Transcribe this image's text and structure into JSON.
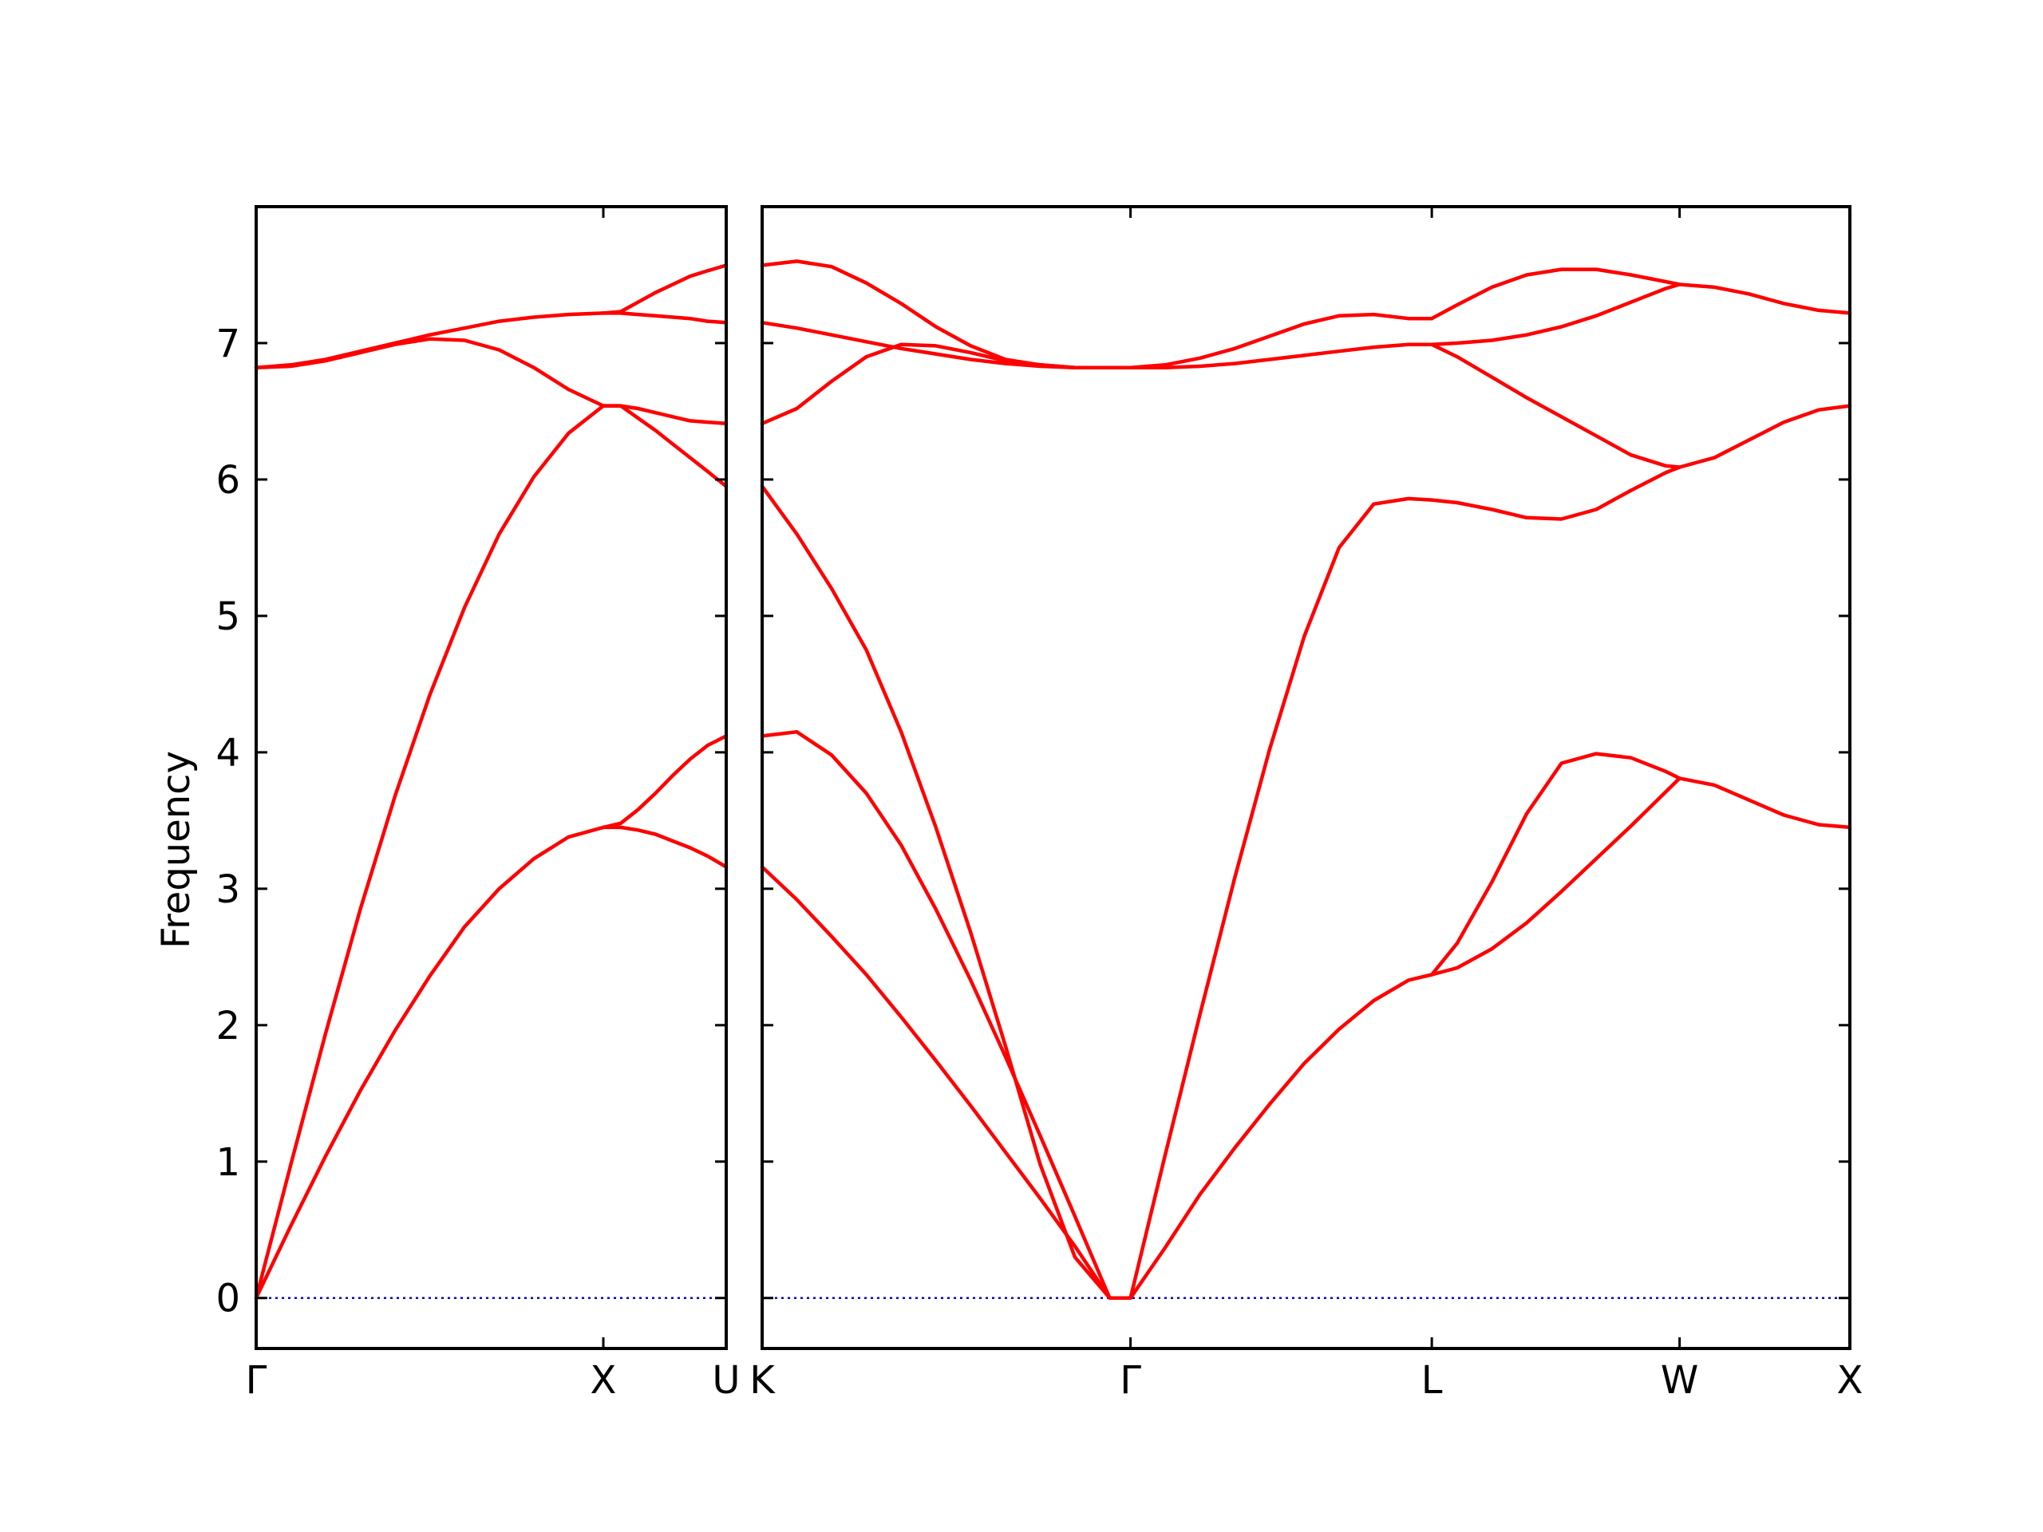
{
  "chart_data": {
    "type": "line",
    "ylabel": "Frequency",
    "ylim": [
      -0.37,
      8.0
    ],
    "yticks": [
      0,
      1,
      2,
      3,
      4,
      5,
      6,
      7
    ],
    "grid": false,
    "legend": "none",
    "band_color": "#ff0000",
    "zero_line_color": "#0000cc",
    "zero_line_y": 0,
    "panels": [
      {
        "xlim": [
          0,
          1.354
        ],
        "ticks": [
          {
            "x": 0,
            "label": "Γ"
          },
          {
            "x": 1.0,
            "label": "X"
          },
          {
            "x": 1.354,
            "label": "U"
          }
        ],
        "series": [
          {
            "x": [
              0,
              0.1,
              0.2,
              0.3,
              0.4,
              0.5,
              0.6,
              0.7,
              0.8,
              0.9,
              1.0,
              1.05,
              1.1,
              1.15,
              1.2,
              1.25,
              1.3,
              1.354
            ],
            "y": [
              0,
              0.53,
              1.04,
              1.52,
              1.96,
              2.36,
              2.72,
              3.0,
              3.22,
              3.38,
              3.45,
              3.45,
              3.43,
              3.4,
              3.35,
              3.3,
              3.24,
              3.16
            ]
          },
          {
            "x": [
              0,
              0.1,
              0.2,
              0.3,
              0.4,
              0.5,
              0.6,
              0.7,
              0.8,
              0.9,
              1.0,
              1.05,
              1.1,
              1.15,
              1.2,
              1.25,
              1.3,
              1.354
            ],
            "y": [
              0,
              0.98,
              1.94,
              2.85,
              3.68,
              4.42,
              5.06,
              5.6,
              6.02,
              6.34,
              6.54,
              6.54,
              6.45,
              6.36,
              6.26,
              6.16,
              6.06,
              5.95
            ]
          },
          {
            "x": [
              0,
              0.1,
              0.2,
              0.3,
              0.4,
              0.5,
              0.6,
              0.7,
              0.8,
              0.9,
              1.0,
              1.05,
              1.1,
              1.15,
              1.2,
              1.25,
              1.3,
              1.354
            ],
            "y": [
              6.82,
              6.83,
              6.87,
              6.93,
              6.99,
              7.03,
              7.02,
              6.95,
              6.82,
              6.66,
              6.54,
              6.54,
              6.52,
              6.49,
              6.46,
              6.43,
              6.42,
              6.41
            ]
          },
          {
            "x": [
              0,
              0.1,
              0.2,
              0.3,
              0.4,
              0.5,
              0.6,
              0.7,
              0.8,
              0.9,
              1.0,
              1.05,
              1.1,
              1.15,
              1.2,
              1.25,
              1.3,
              1.354
            ],
            "y": [
              6.82,
              6.84,
              6.88,
              6.94,
              7.0,
              7.06,
              7.11,
              7.16,
              7.19,
              7.21,
              7.22,
              7.22,
              7.21,
              7.2,
              7.19,
              7.18,
              7.16,
              7.15
            ]
          },
          {
            "x": [
              1.0,
              1.05,
              1.1,
              1.15,
              1.2,
              1.25,
              1.3,
              1.354
            ],
            "y": [
              3.45,
              3.48,
              3.58,
              3.7,
              3.83,
              3.95,
              4.05,
              4.12
            ]
          },
          {
            "x": [
              1.0,
              1.05,
              1.1,
              1.15,
              1.2,
              1.25,
              1.3,
              1.354
            ],
            "y": [
              7.22,
              7.23,
              7.3,
              7.37,
              7.43,
              7.49,
              7.53,
              7.57
            ]
          }
        ]
      },
      {
        "xlim": [
          0,
          3.13
        ],
        "ticks": [
          {
            "x": 0,
            "label": "K"
          },
          {
            "x": 1.06,
            "label": "Γ"
          },
          {
            "x": 1.927,
            "label": "L"
          },
          {
            "x": 2.64,
            "label": "W"
          },
          {
            "x": 3.13,
            "label": "X"
          }
        ],
        "series": [
          {
            "x": [
              0,
              0.1,
              0.2,
              0.3,
              0.4,
              0.5,
              0.6,
              0.7,
              0.8,
              0.9,
              1.0,
              1.06
            ],
            "y": [
              3.16,
              2.92,
              2.65,
              2.37,
              2.06,
              1.74,
              1.41,
              1.07,
              0.73,
              0.38,
              0.0,
              0.0
            ]
          },
          {
            "x": [
              0,
              0.1,
              0.2,
              0.3,
              0.4,
              0.5,
              0.6,
              0.7,
              0.8,
              0.9,
              1.0,
              1.06
            ],
            "y": [
              4.12,
              4.15,
              3.98,
              3.7,
              3.32,
              2.85,
              2.33,
              1.77,
              1.19,
              0.6,
              0.0,
              0.0
            ]
          },
          {
            "x": [
              0,
              0.1,
              0.2,
              0.3,
              0.4,
              0.5,
              0.6,
              0.7,
              0.8,
              0.9,
              1.0,
              1.06
            ],
            "y": [
              5.95,
              5.6,
              5.2,
              4.75,
              4.15,
              3.45,
              2.68,
              1.85,
              0.98,
              0.3,
              0.0,
              0.0
            ]
          },
          {
            "x": [
              0,
              0.1,
              0.2,
              0.3,
              0.4,
              0.5,
              0.6,
              0.7,
              0.8,
              0.9,
              1.0,
              1.06
            ],
            "y": [
              6.41,
              6.52,
              6.72,
              6.9,
              6.99,
              6.98,
              6.93,
              6.87,
              6.84,
              6.82,
              6.82,
              6.82
            ]
          },
          {
            "x": [
              0,
              0.1,
              0.2,
              0.3,
              0.4,
              0.5,
              0.6,
              0.7,
              0.8,
              0.9,
              1.0,
              1.06
            ],
            "y": [
              7.15,
              7.11,
              7.06,
              7.01,
              6.96,
              6.92,
              6.88,
              6.85,
              6.83,
              6.82,
              6.82,
              6.82
            ]
          },
          {
            "x": [
              0,
              0.1,
              0.2,
              0.3,
              0.4,
              0.5,
              0.6,
              0.7,
              0.8,
              0.9,
              1.0,
              1.06
            ],
            "y": [
              7.57,
              7.6,
              7.56,
              7.44,
              7.29,
              7.12,
              6.98,
              6.88,
              6.84,
              6.82,
              6.82,
              6.82
            ]
          },
          {
            "x": [
              1.06,
              1.16,
              1.26,
              1.36,
              1.46,
              1.56,
              1.66,
              1.76,
              1.86,
              1.927
            ],
            "y": [
              0.0,
              0.37,
              0.76,
              1.1,
              1.42,
              1.72,
              1.97,
              2.18,
              2.33,
              2.37
            ]
          },
          {
            "x": [
              1.06,
              1.16,
              1.26,
              1.36,
              1.46,
              1.56,
              1.66,
              1.76,
              1.86,
              1.927
            ],
            "y": [
              0.0,
              1.05,
              2.08,
              3.08,
              4.02,
              4.85,
              5.5,
              5.82,
              5.86,
              5.85
            ]
          },
          {
            "x": [
              1.06,
              1.16,
              1.26,
              1.36,
              1.46,
              1.56,
              1.66,
              1.76,
              1.86,
              1.927
            ],
            "y": [
              6.82,
              6.82,
              6.83,
              6.85,
              6.88,
              6.91,
              6.94,
              6.97,
              6.99,
              6.99
            ]
          },
          {
            "x": [
              1.06,
              1.16,
              1.26,
              1.36,
              1.46,
              1.56,
              1.66,
              1.76,
              1.86,
              1.927
            ],
            "y": [
              6.82,
              6.84,
              6.89,
              6.96,
              7.05,
              7.14,
              7.2,
              7.21,
              7.18,
              7.18
            ]
          },
          {
            "x": [
              1.927,
              2.0,
              2.1,
              2.2,
              2.3,
              2.4,
              2.5,
              2.6,
              2.64
            ],
            "y": [
              2.37,
              2.42,
              2.56,
              2.75,
              2.98,
              3.22,
              3.46,
              3.71,
              3.81
            ]
          },
          {
            "x": [
              1.927,
              2.0,
              2.1,
              2.2,
              2.3,
              2.4,
              2.5,
              2.6,
              2.64
            ],
            "y": [
              2.37,
              2.6,
              3.05,
              3.55,
              3.92,
              3.99,
              3.96,
              3.86,
              3.81
            ]
          },
          {
            "x": [
              1.927,
              2.0,
              2.1,
              2.2,
              2.3,
              2.4,
              2.5,
              2.6,
              2.64
            ],
            "y": [
              5.85,
              5.83,
              5.78,
              5.72,
              5.71,
              5.78,
              5.92,
              6.05,
              6.09
            ]
          },
          {
            "x": [
              1.927,
              2.0,
              2.1,
              2.2,
              2.3,
              2.4,
              2.5,
              2.6,
              2.64
            ],
            "y": [
              6.99,
              6.9,
              6.75,
              6.6,
              6.46,
              6.32,
              6.18,
              6.1,
              6.09
            ]
          },
          {
            "x": [
              1.927,
              2.0,
              2.1,
              2.2,
              2.3,
              2.4,
              2.5,
              2.6,
              2.64
            ],
            "y": [
              6.99,
              7.0,
              7.02,
              7.06,
              7.12,
              7.2,
              7.3,
              7.4,
              7.43
            ]
          },
          {
            "x": [
              1.927,
              2.0,
              2.1,
              2.2,
              2.3,
              2.4,
              2.5,
              2.6,
              2.64
            ],
            "y": [
              7.18,
              7.28,
              7.41,
              7.5,
              7.54,
              7.54,
              7.5,
              7.45,
              7.43
            ]
          },
          {
            "x": [
              2.64,
              2.74,
              2.84,
              2.94,
              3.04,
              3.13
            ],
            "y": [
              3.81,
              3.76,
              3.65,
              3.54,
              3.47,
              3.45
            ]
          },
          {
            "x": [
              2.64,
              2.74,
              2.84,
              2.94,
              3.04,
              3.13
            ],
            "y": [
              6.09,
              6.16,
              6.29,
              6.42,
              6.51,
              6.54
            ]
          },
          {
            "x": [
              2.64,
              2.74,
              2.84,
              2.94,
              3.04,
              3.13
            ],
            "y": [
              7.43,
              7.41,
              7.36,
              7.29,
              7.24,
              7.22
            ]
          }
        ]
      }
    ]
  }
}
